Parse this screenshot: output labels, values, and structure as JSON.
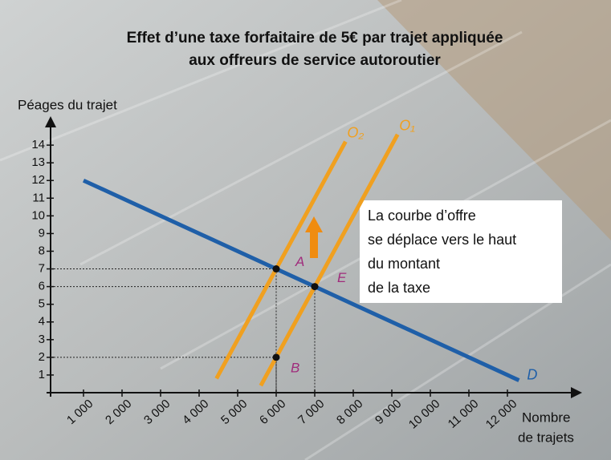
{
  "chart_data": {
    "type": "line",
    "title": [
      "Effet d’une taxe forfaitaire de 5€ par trajet appliquée",
      "aux offreurs de service autoroutier"
    ],
    "y_label": "Péages du trajet",
    "x_label": [
      "Nombre",
      "de trajets"
    ],
    "xlim": [
      0,
      13500
    ],
    "ylim": [
      0,
      15.5
    ],
    "xticks": [
      {
        "value": 1000,
        "label": "1 000"
      },
      {
        "value": 2000,
        "label": "2 000"
      },
      {
        "value": 3000,
        "label": "3 000"
      },
      {
        "value": 4000,
        "label": "4 000"
      },
      {
        "value": 5000,
        "label": "5 000"
      },
      {
        "value": 6000,
        "label": "6 000"
      },
      {
        "value": 7000,
        "label": "7 000"
      },
      {
        "value": 8000,
        "label": "8 000"
      },
      {
        "value": 9000,
        "label": "9 000"
      },
      {
        "value": 10000,
        "label": "10 000"
      },
      {
        "value": 11000,
        "label": "11 000"
      },
      {
        "value": 12000,
        "label": "12 000"
      }
    ],
    "yticks": [
      1,
      2,
      3,
      4,
      5,
      6,
      7,
      8,
      9,
      10,
      11,
      12,
      13,
      14
    ],
    "series": [
      {
        "name": "O₂",
        "color": "#f0a020",
        "x": [
          4450,
          7800
        ],
        "values": [
          0.8,
          14.2
        ]
      },
      {
        "name": "O₁",
        "color": "#f0a020",
        "x": [
          5600,
          9150
        ],
        "values": [
          0.4,
          14.6
        ]
      },
      {
        "name": "D",
        "color": "#1f5fa8",
        "x": [
          1000,
          12300
        ],
        "values": [
          12,
          0.7
        ]
      }
    ],
    "points": [
      {
        "label": "A",
        "x": 6000,
        "y": 7
      },
      {
        "label": "E",
        "x": 7000,
        "y": 6
      },
      {
        "label": "B",
        "x": 6000,
        "y": 2
      }
    ],
    "annotation": [
      "La courbe d’offre",
      "se déplace vers le haut",
      "du montant",
      "de la taxe"
    ]
  }
}
